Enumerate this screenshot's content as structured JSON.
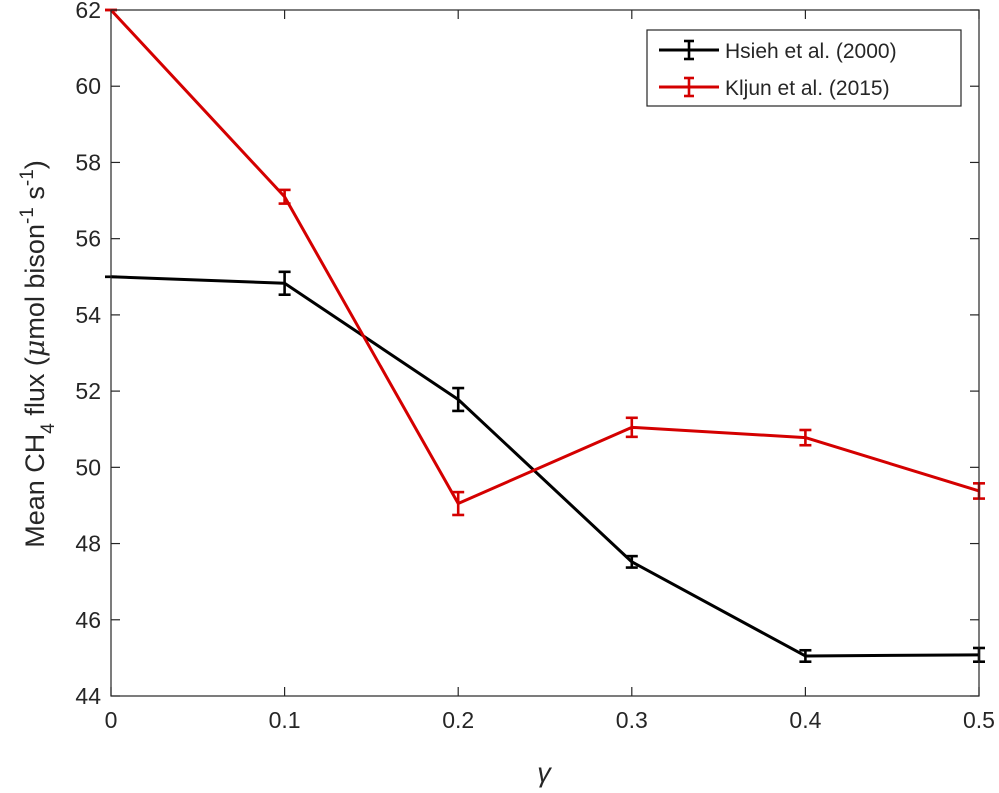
{
  "chart_data": {
    "type": "line",
    "title": "",
    "xlabel": "γ",
    "ylabel": {
      "prefix": "Mean CH",
      "subscript": "4",
      "middle": " flux (",
      "mu": "μ",
      "unit": "mol bison",
      "sup1": "-1",
      "unit2": " s",
      "sup2": "-1",
      "suffix": ")"
    },
    "xlim": [
      0,
      0.5
    ],
    "ylim": [
      44,
      62
    ],
    "xticks": [
      "0",
      "0.1",
      "0.2",
      "0.3",
      "0.4",
      "0.5"
    ],
    "yticks": [
      "44",
      "46",
      "48",
      "50",
      "52",
      "54",
      "56",
      "58",
      "60",
      "62"
    ],
    "grid": false,
    "legend_position": "top-right",
    "x": [
      0,
      0.1,
      0.2,
      0.3,
      0.4,
      0.5
    ],
    "series": [
      {
        "name": "Hsieh et al. (2000)",
        "color": "#000000",
        "values": [
          55.0,
          54.83,
          51.78,
          47.52,
          45.05,
          45.08
        ],
        "errors": [
          0.0,
          0.3,
          0.3,
          0.15,
          0.15,
          0.18
        ]
      },
      {
        "name": "Kljun et al. (2015)",
        "color": "#d40000",
        "values": [
          62.0,
          57.1,
          49.05,
          51.05,
          50.78,
          49.38
        ],
        "errors": [
          0.0,
          0.18,
          0.3,
          0.25,
          0.2,
          0.2
        ]
      }
    ]
  }
}
